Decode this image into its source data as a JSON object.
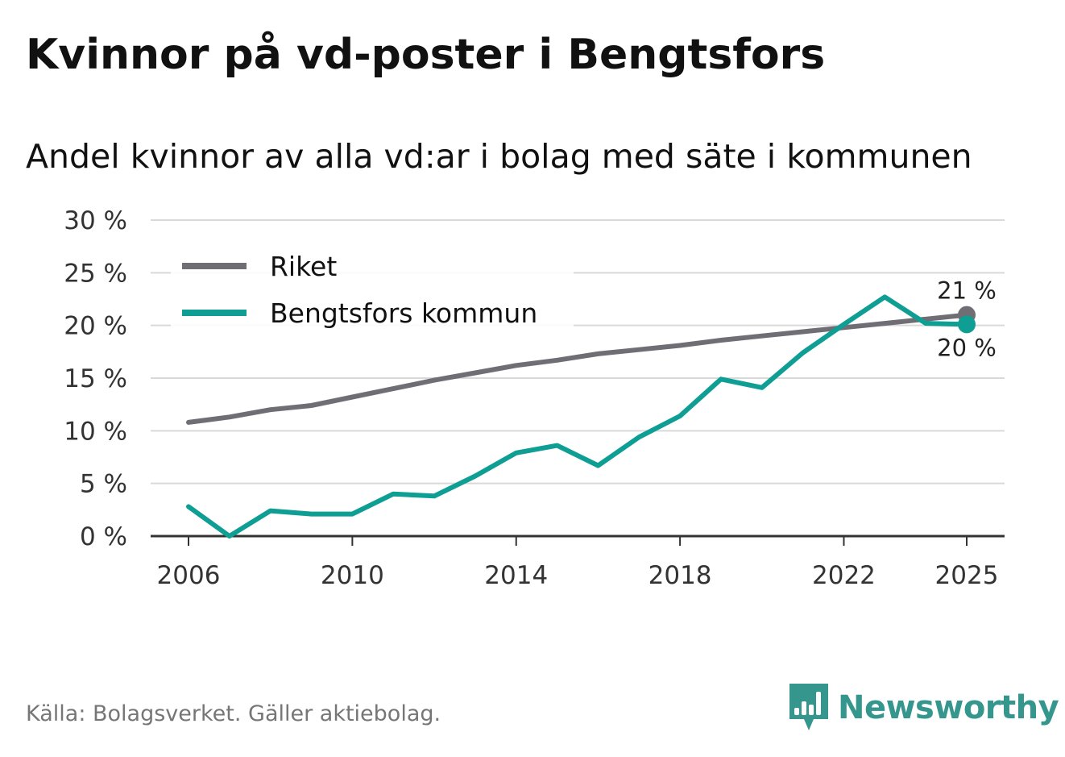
{
  "title": "Kvinnor på vd-poster i Bengtsfors",
  "subtitle": "Andel kvinnor av alla vd:ar i bolag med säte i kommunen",
  "source": "Källa: Bolagsverket. Gäller aktiebolag.",
  "brand": {
    "name": "Newsworthy",
    "color": "#34968d",
    "icon": "bar-chart-speech-bubble-icon"
  },
  "colors": {
    "riket": "#6f6e75",
    "kommun": "#0e9e93",
    "grid": "#d9d9d9",
    "axis": "#333333"
  },
  "chart_data": {
    "type": "line",
    "title": "Kvinnor på vd-poster i Bengtsfors",
    "subtitle": "Andel kvinnor av alla vd:ar i bolag med säte i kommunen",
    "xlabel": "",
    "ylabel": "",
    "xlim": [
      2006,
      2025
    ],
    "ylim": [
      0,
      30
    ],
    "y_ticks": [
      0,
      5,
      10,
      15,
      20,
      25,
      30
    ],
    "y_tick_labels": [
      "0 %",
      "5 %",
      "10 %",
      "15 %",
      "20 %",
      "25 %",
      "30 %"
    ],
    "x_ticks": [
      2006,
      2010,
      2014,
      2018,
      2022,
      2025
    ],
    "x_tick_labels": [
      "2006",
      "2010",
      "2014",
      "2018",
      "2022",
      "2025"
    ],
    "grid": true,
    "legend": "top-left",
    "x": [
      2006,
      2007,
      2008,
      2009,
      2010,
      2011,
      2012,
      2013,
      2014,
      2015,
      2016,
      2017,
      2018,
      2019,
      2020,
      2021,
      2022,
      2023,
      2024,
      2025
    ],
    "series": [
      {
        "name": "Riket",
        "color": "#6f6e75",
        "values": [
          10.8,
          11.3,
          12.0,
          12.4,
          13.2,
          14.0,
          14.8,
          15.5,
          16.2,
          16.7,
          17.3,
          17.7,
          18.1,
          18.6,
          19.0,
          19.4,
          19.8,
          20.2,
          20.6,
          21.0
        ],
        "end_label": "21 %"
      },
      {
        "name": "Bengtsfors kommun",
        "color": "#0e9e93",
        "values": [
          2.8,
          0.0,
          2.4,
          2.1,
          2.1,
          4.0,
          3.8,
          5.7,
          7.9,
          8.6,
          6.7,
          9.4,
          11.4,
          14.9,
          14.1,
          17.4,
          20.1,
          22.7,
          20.2,
          20.1
        ],
        "end_label": "20 %"
      }
    ]
  }
}
